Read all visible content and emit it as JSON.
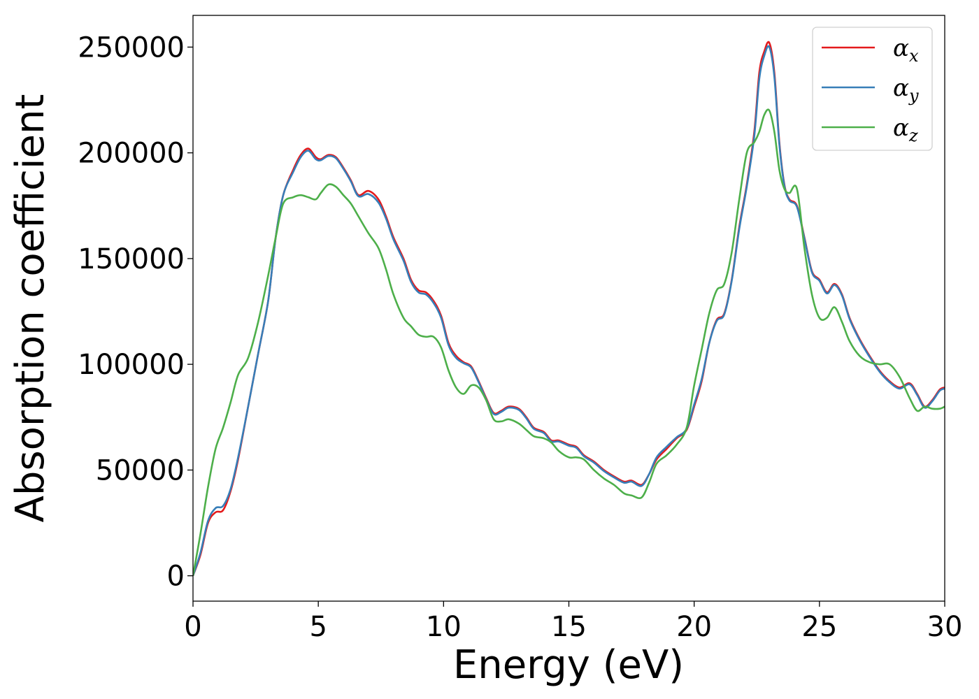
{
  "chart_data": {
    "type": "line",
    "title": "",
    "xlabel": "Energy (eV)",
    "ylabel": "Absorption coefficient",
    "xlim": [
      0,
      30
    ],
    "ylim": [
      -12000,
      265000
    ],
    "xticks": [
      0,
      5,
      10,
      15,
      20,
      25,
      30
    ],
    "yticks": [
      0,
      50000,
      100000,
      150000,
      200000,
      250000
    ],
    "xtick_labels": [
      "0",
      "5",
      "10",
      "15",
      "20",
      "25",
      "30"
    ],
    "ytick_labels": [
      "0",
      "50000",
      "100000",
      "150000",
      "200000",
      "250000"
    ],
    "grid": false,
    "legend_position": "top-right",
    "series": [
      {
        "name": "α_x",
        "name_base": "α",
        "name_sub": "x",
        "color": "#e41a1c",
        "points": [
          [
            0,
            0
          ],
          [
            0.3,
            10000
          ],
          [
            0.6,
            25000
          ],
          [
            0.9,
            30000
          ],
          [
            1.2,
            31000
          ],
          [
            1.5,
            40000
          ],
          [
            1.8,
            55000
          ],
          [
            2.2,
            80000
          ],
          [
            2.6,
            105000
          ],
          [
            3.0,
            130000
          ],
          [
            3.3,
            160000
          ],
          [
            3.6,
            180000
          ],
          [
            4.0,
            192000
          ],
          [
            4.3,
            199000
          ],
          [
            4.6,
            202000
          ],
          [
            4.9,
            198000
          ],
          [
            5.1,
            197000
          ],
          [
            5.4,
            199000
          ],
          [
            5.7,
            198000
          ],
          [
            6.0,
            193000
          ],
          [
            6.3,
            187000
          ],
          [
            6.6,
            180000
          ],
          [
            7.0,
            182000
          ],
          [
            7.4,
            178000
          ],
          [
            7.7,
            170000
          ],
          [
            8.0,
            160000
          ],
          [
            8.4,
            150000
          ],
          [
            8.7,
            140000
          ],
          [
            9.0,
            135000
          ],
          [
            9.3,
            134000
          ],
          [
            9.6,
            130000
          ],
          [
            9.9,
            123000
          ],
          [
            10.2,
            110000
          ],
          [
            10.5,
            104000
          ],
          [
            10.8,
            101000
          ],
          [
            11.1,
            99000
          ],
          [
            11.4,
            92000
          ],
          [
            11.7,
            84000
          ],
          [
            12.0,
            77000
          ],
          [
            12.3,
            78000
          ],
          [
            12.6,
            80000
          ],
          [
            13.0,
            79000
          ],
          [
            13.3,
            75000
          ],
          [
            13.6,
            70000
          ],
          [
            14.0,
            68000
          ],
          [
            14.3,
            64000
          ],
          [
            14.6,
            64000
          ],
          [
            15.0,
            62000
          ],
          [
            15.3,
            61000
          ],
          [
            15.6,
            57000
          ],
          [
            16.0,
            54000
          ],
          [
            16.4,
            50000
          ],
          [
            16.8,
            47000
          ],
          [
            17.2,
            44500
          ],
          [
            17.5,
            45000
          ],
          [
            17.9,
            43000
          ],
          [
            18.2,
            48000
          ],
          [
            18.5,
            55000
          ],
          [
            18.9,
            60000
          ],
          [
            19.3,
            65000
          ],
          [
            19.7,
            69000
          ],
          [
            20.0,
            80000
          ],
          [
            20.3,
            92000
          ],
          [
            20.6,
            110000
          ],
          [
            20.9,
            121000
          ],
          [
            21.2,
            124000
          ],
          [
            21.5,
            140000
          ],
          [
            21.8,
            165000
          ],
          [
            22.1,
            185000
          ],
          [
            22.4,
            210000
          ],
          [
            22.6,
            238000
          ],
          [
            22.8,
            248000
          ],
          [
            23.0,
            252000
          ],
          [
            23.2,
            238000
          ],
          [
            23.4,
            205000
          ],
          [
            23.6,
            185000
          ],
          [
            23.8,
            178000
          ],
          [
            24.1,
            175000
          ],
          [
            24.4,
            160000
          ],
          [
            24.7,
            144000
          ],
          [
            25.0,
            140000
          ],
          [
            25.3,
            134000
          ],
          [
            25.6,
            138000
          ],
          [
            25.9,
            133000
          ],
          [
            26.2,
            122000
          ],
          [
            26.6,
            112000
          ],
          [
            27.0,
            104000
          ],
          [
            27.4,
            97000
          ],
          [
            27.8,
            92000
          ],
          [
            28.2,
            89000
          ],
          [
            28.6,
            91000
          ],
          [
            28.9,
            86000
          ],
          [
            29.2,
            80000
          ],
          [
            29.5,
            83000
          ],
          [
            29.8,
            88000
          ],
          [
            30.0,
            89000
          ]
        ]
      },
      {
        "name": "α_y",
        "name_base": "α",
        "name_sub": "y",
        "color": "#377eb8",
        "points": [
          [
            0,
            0
          ],
          [
            0.3,
            11000
          ],
          [
            0.6,
            26000
          ],
          [
            0.9,
            32000
          ],
          [
            1.2,
            33000
          ],
          [
            1.5,
            41000
          ],
          [
            1.8,
            56000
          ],
          [
            2.2,
            80000
          ],
          [
            2.6,
            105000
          ],
          [
            3.0,
            130000
          ],
          [
            3.3,
            160000
          ],
          [
            3.6,
            180000
          ],
          [
            4.0,
            191000
          ],
          [
            4.3,
            198000
          ],
          [
            4.6,
            201000
          ],
          [
            4.9,
            197000
          ],
          [
            5.1,
            196500
          ],
          [
            5.4,
            198500
          ],
          [
            5.7,
            197500
          ],
          [
            6.0,
            192500
          ],
          [
            6.3,
            186500
          ],
          [
            6.6,
            179500
          ],
          [
            7.0,
            180500
          ],
          [
            7.4,
            176500
          ],
          [
            7.7,
            169000
          ],
          [
            8.0,
            159000
          ],
          [
            8.4,
            149000
          ],
          [
            8.7,
            139000
          ],
          [
            9.0,
            134000
          ],
          [
            9.3,
            133000
          ],
          [
            9.6,
            129000
          ],
          [
            9.9,
            122000
          ],
          [
            10.2,
            109000
          ],
          [
            10.5,
            103000
          ],
          [
            10.8,
            100500
          ],
          [
            11.1,
            98500
          ],
          [
            11.4,
            91500
          ],
          [
            11.7,
            83500
          ],
          [
            12.0,
            76500
          ],
          [
            12.3,
            77500
          ],
          [
            12.6,
            79500
          ],
          [
            13.0,
            78500
          ],
          [
            13.3,
            74500
          ],
          [
            13.6,
            69500
          ],
          [
            14.0,
            67500
          ],
          [
            14.3,
            63500
          ],
          [
            14.6,
            63500
          ],
          [
            15.0,
            61500
          ],
          [
            15.3,
            60500
          ],
          [
            15.6,
            56500
          ],
          [
            16.0,
            53500
          ],
          [
            16.4,
            49500
          ],
          [
            16.8,
            46500
          ],
          [
            17.2,
            44000
          ],
          [
            17.5,
            44500
          ],
          [
            17.9,
            42500
          ],
          [
            18.2,
            48000
          ],
          [
            18.5,
            56000
          ],
          [
            18.9,
            61000
          ],
          [
            19.3,
            65500
          ],
          [
            19.7,
            69500
          ],
          [
            20.0,
            81000
          ],
          [
            20.3,
            93000
          ],
          [
            20.6,
            110000
          ],
          [
            20.9,
            120500
          ],
          [
            21.2,
            123500
          ],
          [
            21.5,
            139500
          ],
          [
            21.8,
            164000
          ],
          [
            22.1,
            184000
          ],
          [
            22.4,
            208000
          ],
          [
            22.6,
            235000
          ],
          [
            22.8,
            246000
          ],
          [
            23.0,
            250000
          ],
          [
            23.2,
            236000
          ],
          [
            23.4,
            204000
          ],
          [
            23.6,
            184500
          ],
          [
            23.8,
            177500
          ],
          [
            24.1,
            174500
          ],
          [
            24.4,
            159500
          ],
          [
            24.7,
            143500
          ],
          [
            25.0,
            139500
          ],
          [
            25.3,
            133500
          ],
          [
            25.6,
            137500
          ],
          [
            25.9,
            132500
          ],
          [
            26.2,
            121500
          ],
          [
            26.6,
            111500
          ],
          [
            27.0,
            103500
          ],
          [
            27.4,
            96500
          ],
          [
            27.8,
            91500
          ],
          [
            28.2,
            88500
          ],
          [
            28.6,
            90500
          ],
          [
            28.9,
            85500
          ],
          [
            29.2,
            79500
          ],
          [
            29.5,
            82500
          ],
          [
            29.8,
            87500
          ],
          [
            30.0,
            88500
          ]
        ]
      },
      {
        "name": "α_z",
        "name_base": "α",
        "name_sub": "z",
        "color": "#4daf4a",
        "points": [
          [
            0,
            0
          ],
          [
            0.3,
            20000
          ],
          [
            0.6,
            42000
          ],
          [
            0.9,
            60000
          ],
          [
            1.2,
            70000
          ],
          [
            1.5,
            82000
          ],
          [
            1.8,
            95000
          ],
          [
            2.2,
            103000
          ],
          [
            2.6,
            120000
          ],
          [
            3.0,
            142000
          ],
          [
            3.3,
            160000
          ],
          [
            3.6,
            176000
          ],
          [
            4.0,
            179000
          ],
          [
            4.3,
            180000
          ],
          [
            4.6,
            179000
          ],
          [
            4.9,
            178000
          ],
          [
            5.1,
            181000
          ],
          [
            5.4,
            185000
          ],
          [
            5.7,
            184000
          ],
          [
            6.0,
            180000
          ],
          [
            6.3,
            176000
          ],
          [
            6.6,
            170000
          ],
          [
            7.0,
            162000
          ],
          [
            7.4,
            155000
          ],
          [
            7.7,
            145000
          ],
          [
            8.0,
            133000
          ],
          [
            8.4,
            122000
          ],
          [
            8.7,
            118000
          ],
          [
            9.0,
            114000
          ],
          [
            9.3,
            113000
          ],
          [
            9.6,
            113000
          ],
          [
            9.9,
            108000
          ],
          [
            10.2,
            97000
          ],
          [
            10.5,
            89000
          ],
          [
            10.8,
            86000
          ],
          [
            11.1,
            90000
          ],
          [
            11.4,
            89000
          ],
          [
            11.7,
            83000
          ],
          [
            12.0,
            74000
          ],
          [
            12.3,
            73000
          ],
          [
            12.6,
            74000
          ],
          [
            13.0,
            72000
          ],
          [
            13.3,
            69000
          ],
          [
            13.6,
            66000
          ],
          [
            14.0,
            65000
          ],
          [
            14.3,
            63000
          ],
          [
            14.6,
            59000
          ],
          [
            15.0,
            56000
          ],
          [
            15.3,
            56000
          ],
          [
            15.6,
            55000
          ],
          [
            16.0,
            50000
          ],
          [
            16.4,
            46000
          ],
          [
            16.8,
            43000
          ],
          [
            17.2,
            39000
          ],
          [
            17.5,
            38000
          ],
          [
            17.9,
            37000
          ],
          [
            18.2,
            44000
          ],
          [
            18.5,
            53000
          ],
          [
            18.9,
            57000
          ],
          [
            19.3,
            62000
          ],
          [
            19.7,
            70000
          ],
          [
            20.0,
            90000
          ],
          [
            20.3,
            107000
          ],
          [
            20.6,
            124000
          ],
          [
            20.9,
            135000
          ],
          [
            21.2,
            138000
          ],
          [
            21.5,
            153000
          ],
          [
            21.8,
            178000
          ],
          [
            22.1,
            200000
          ],
          [
            22.4,
            205000
          ],
          [
            22.6,
            210000
          ],
          [
            22.8,
            218000
          ],
          [
            23.0,
            220000
          ],
          [
            23.2,
            210000
          ],
          [
            23.4,
            192000
          ],
          [
            23.6,
            183000
          ],
          [
            23.8,
            181000
          ],
          [
            24.1,
            183000
          ],
          [
            24.4,
            155000
          ],
          [
            24.7,
            133000
          ],
          [
            25.0,
            122000
          ],
          [
            25.3,
            122000
          ],
          [
            25.6,
            127000
          ],
          [
            25.9,
            120000
          ],
          [
            26.2,
            111000
          ],
          [
            26.6,
            104000
          ],
          [
            27.0,
            101000
          ],
          [
            27.4,
            100000
          ],
          [
            27.8,
            100000
          ],
          [
            28.2,
            94000
          ],
          [
            28.6,
            84000
          ],
          [
            28.9,
            78000
          ],
          [
            29.2,
            80000
          ],
          [
            29.5,
            79000
          ],
          [
            29.8,
            79000
          ],
          [
            30.0,
            80000
          ]
        ]
      }
    ]
  }
}
